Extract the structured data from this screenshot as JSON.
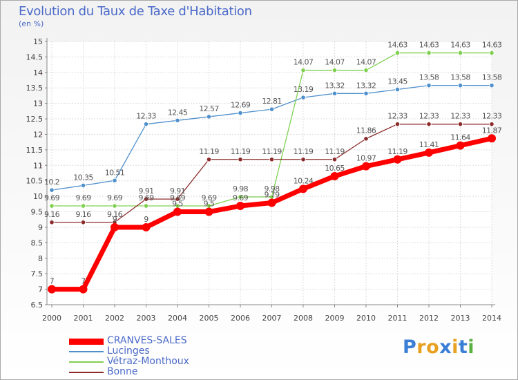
{
  "header": {
    "title": "Evolution du Taux de Taxe d'Habitation",
    "subtitle": "(en %)"
  },
  "logo": {
    "text": "ProXiti",
    "letters": [
      "P",
      "r",
      "o",
      "x",
      "i",
      "t",
      "i"
    ],
    "colors": [
      "#3a7fd5",
      "#e8a020",
      "#e8a020",
      "#3a7fd5",
      "#e8a020",
      "#3a7fd5",
      "#5ab040"
    ]
  },
  "chart_data": {
    "type": "line",
    "title": "Evolution du Taux de Taxe d'Habitation",
    "ylabel": "(en %)",
    "xlabel": "",
    "x": [
      "2000",
      "2001",
      "2002",
      "2003",
      "2004",
      "2005",
      "2006",
      "2007",
      "2008",
      "2009",
      "2010",
      "2011",
      "2012",
      "2013",
      "2014"
    ],
    "ylim": [
      6.5,
      15
    ],
    "yticks": [
      "6.5",
      "7",
      "7.5",
      "8",
      "8.5",
      "9",
      "9.5",
      "10",
      "10.5",
      "11",
      "11.5",
      "12",
      "12.5",
      "13",
      "13.5",
      "14",
      "14.5",
      "15"
    ],
    "grid": true,
    "legend_position": "bottom-left",
    "series": [
      {
        "name": "CRANVES-SALES",
        "color": "#ff0000",
        "values": [
          7,
          7,
          9,
          9,
          9.5,
          9.5,
          9.69,
          9.79,
          10.24,
          10.65,
          10.97,
          11.19,
          11.41,
          11.64,
          11.87
        ],
        "labels": [
          "7",
          "7",
          "9",
          "9",
          "9.5",
          "9.5",
          "9.69",
          "9.79",
          "10.24",
          "10.65",
          "10.97",
          "11.19",
          "11.41",
          "11.64",
          "11.87"
        ]
      },
      {
        "name": "Lucinges",
        "color": "#4f90cc",
        "values": [
          10.2,
          10.35,
          10.51,
          12.33,
          12.45,
          12.57,
          12.69,
          12.81,
          13.19,
          13.32,
          13.32,
          13.45,
          13.58,
          13.58,
          13.58
        ],
        "labels": [
          "10.2",
          "10.35",
          "10.51",
          "12.33",
          "12.45",
          "12.57",
          "12.69",
          "12.81",
          "13.19",
          "13.32",
          "13.32",
          "13.45",
          "13.58",
          "13.58",
          "13.58"
        ]
      },
      {
        "name": "Vétraz-Monthoux",
        "color": "#80d050",
        "values": [
          9.69,
          9.69,
          9.69,
          9.69,
          9.69,
          9.69,
          9.98,
          9.98,
          14.07,
          14.07,
          14.07,
          14.63,
          14.63,
          14.63,
          14.63
        ],
        "labels": [
          "9.69",
          "9.69",
          "9.69",
          "9.69",
          "9.69",
          "9.69",
          "9.98",
          "9.98",
          "14.07",
          "14.07",
          "14.07",
          "14.63",
          "14.63",
          "14.63",
          "14.63"
        ]
      },
      {
        "name": "Bonne",
        "color": "#8b2b2b",
        "values": [
          9.16,
          9.16,
          9.16,
          9.91,
          9.91,
          11.19,
          11.19,
          11.19,
          11.19,
          11.19,
          11.86,
          12.33,
          12.33,
          12.33,
          12.33
        ],
        "labels": [
          "9.16",
          "9.16",
          "9.16",
          "9.91",
          "9.91",
          "11.19",
          "11.19",
          "11.19",
          "11.19",
          "11.19",
          "11.86",
          "12.33",
          "12.33",
          "12.33",
          "12.33"
        ]
      }
    ]
  }
}
